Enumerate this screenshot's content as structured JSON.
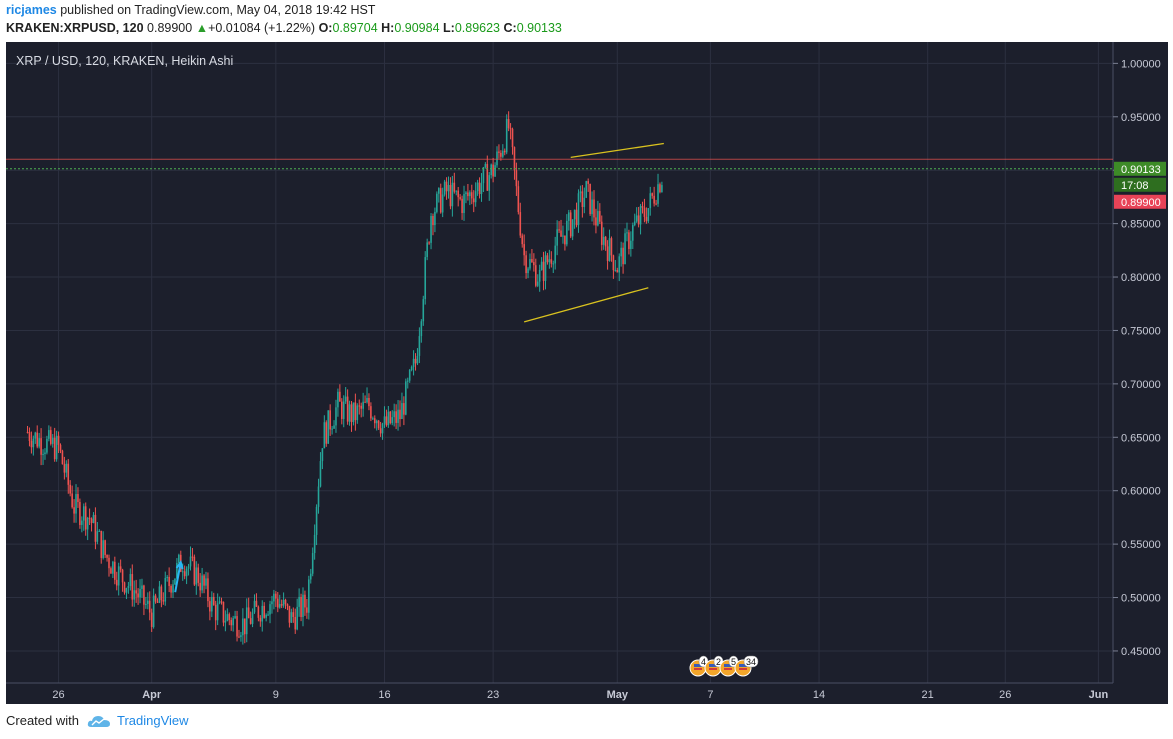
{
  "header": {
    "author": "ricjames",
    "published_text": " published on TradingView.com, May 04, 2018 19:42 HST",
    "symbol": "KRAKEN:XRPUSD, 120",
    "last": "0.89900",
    "change": "+0.01084 (+1.22%)",
    "o_label": "O:",
    "o_value": "0.89704",
    "h_label": "H:",
    "h_value": "0.90984",
    "l_label": "L:",
    "l_value": "0.89623",
    "c_label": "C:",
    "c_value": "0.90133"
  },
  "chart_title": "XRP / USD, 120, KRAKEN, Heikin Ashi",
  "footer": {
    "created_with": "Created with",
    "brand": "TradingView"
  },
  "colors": {
    "background": "#1c1f2c",
    "grid": "#2c3040",
    "up": "#26a69a",
    "down": "#ef5350",
    "trendline": "#d9c21f",
    "arrow": "#29b6f6",
    "price_line_green": "#4caf50",
    "price_line_red": "#ef5350"
  },
  "chart_data": {
    "type": "candlestick",
    "title": "XRP / USD, 120, KRAKEN, Heikin Ashi",
    "ylim": [
      0.42,
      1.02
    ],
    "y_ticks": [
      "1.00000",
      "0.95000",
      "0.90000",
      "0.85000",
      "0.80000",
      "0.75000",
      "0.70000",
      "0.65000",
      "0.60000",
      "0.55000",
      "0.50000",
      "0.45000"
    ],
    "x_ticks": [
      "26",
      "Apr",
      "9",
      "16",
      "23",
      "May",
      "7",
      "14",
      "21",
      "26",
      "Jun"
    ],
    "current_price_label": "0.90133",
    "countdown_label": "17:08",
    "last_price_label": "0.89900",
    "series": [
      {
        "name": "XRPUSD",
        "path": [
          [
            "Mar 24",
            0.655
          ],
          [
            "Mar 25",
            0.645
          ],
          [
            "Mar 26",
            0.64
          ],
          [
            "Mar 27",
            0.585
          ],
          [
            "Mar 28",
            0.575
          ],
          [
            "Mar 29",
            0.54
          ],
          [
            "Mar 30",
            0.52
          ],
          [
            "Mar 31",
            0.505
          ],
          [
            "Apr 1",
            0.485
          ],
          [
            "Apr 2",
            0.51
          ],
          [
            "Apr 3",
            0.535
          ],
          [
            "Apr 4",
            0.52
          ],
          [
            "Apr 5",
            0.49
          ],
          [
            "Apr 6",
            0.48
          ],
          [
            "Apr 7",
            0.475
          ],
          [
            "Apr 8",
            0.49
          ],
          [
            "Apr 9",
            0.5
          ],
          [
            "Apr 10",
            0.48
          ],
          [
            "Apr 11",
            0.495
          ],
          [
            "Apr 12",
            0.65
          ],
          [
            "Apr 13",
            0.68
          ],
          [
            "Apr 14",
            0.67
          ],
          [
            "Apr 15",
            0.68
          ],
          [
            "Apr 16",
            0.66
          ],
          [
            "Apr 17",
            0.67
          ],
          [
            "Apr 18",
            0.72
          ],
          [
            "Apr 19",
            0.86
          ],
          [
            "Apr 20",
            0.88
          ],
          [
            "Apr 21",
            0.87
          ],
          [
            "Apr 22",
            0.885
          ],
          [
            "Apr 23",
            0.9
          ],
          [
            "Apr 24",
            0.94
          ],
          [
            "Apr 25",
            0.82
          ],
          [
            "Apr 26",
            0.8
          ],
          [
            "Apr 27",
            0.83
          ],
          [
            "Apr 28",
            0.85
          ],
          [
            "Apr 29",
            0.88
          ],
          [
            "Apr 30",
            0.84
          ],
          [
            "May 1",
            0.81
          ],
          [
            "May 2",
            0.845
          ],
          [
            "May 3",
            0.865
          ],
          [
            "May 4",
            0.899
          ]
        ]
      }
    ],
    "annotations": {
      "upper_trendline": [
        [
          "Apr 28",
          0.912
        ],
        [
          "May 4",
          0.925
        ]
      ],
      "lower_trendline": [
        [
          "Apr 25",
          0.758
        ],
        [
          "May 3",
          0.79
        ]
      ],
      "arrow": [
        [
          "Apr 2",
          0.505
        ],
        [
          "Apr 3",
          0.533
        ]
      ]
    },
    "event_badges": [
      "4",
      "2",
      "5",
      "34"
    ]
  }
}
